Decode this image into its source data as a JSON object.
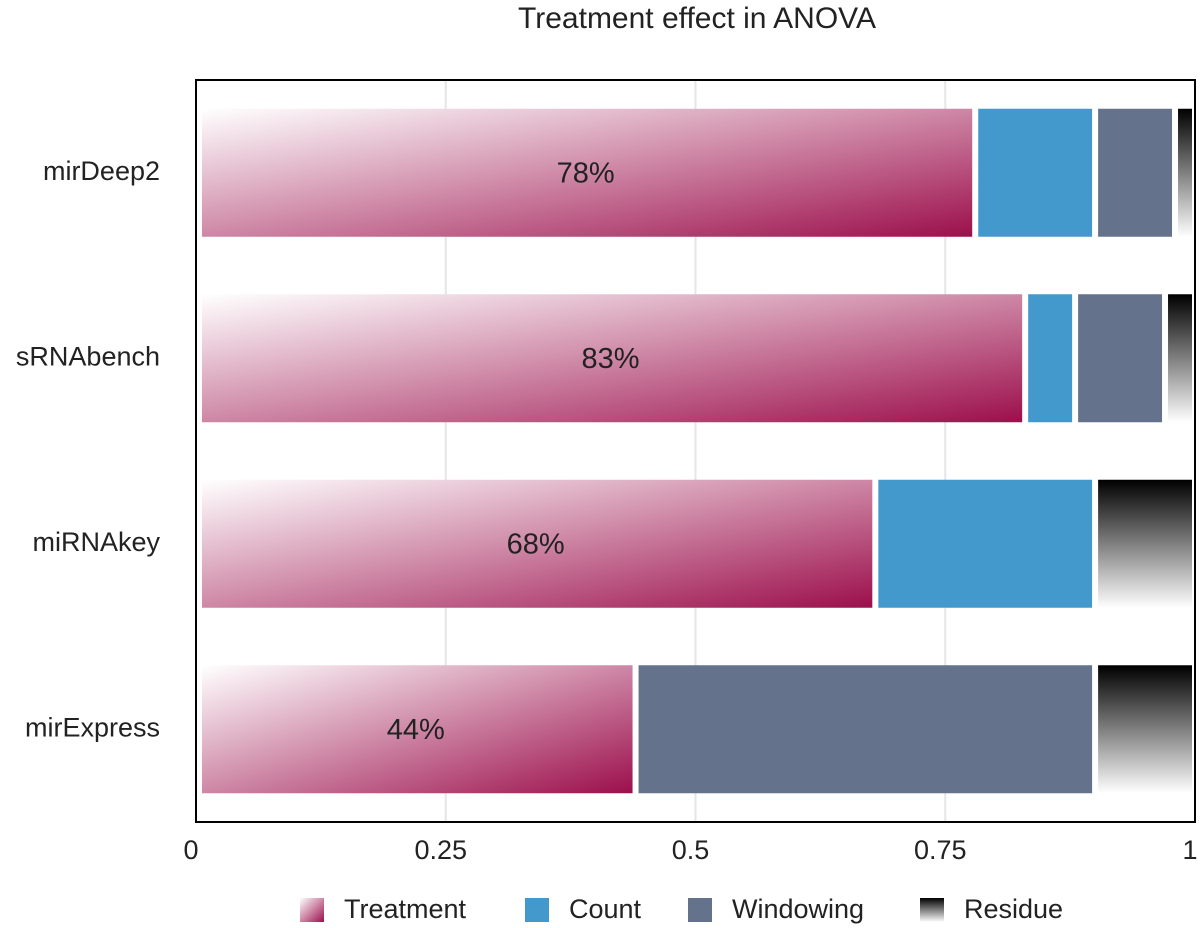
{
  "chart_data": {
    "type": "stacked_barh",
    "title": "Treatment effect in ANOVA",
    "categories": [
      "mirDeep2",
      "sRNAbench",
      "miRNAkey",
      "mirExpress"
    ],
    "series": [
      {
        "name": "Treatment",
        "color": "#9c0f4c",
        "values": [
          0.78,
          0.83,
          0.68,
          0.44
        ],
        "value_labels": [
          "78%",
          "83%",
          "68%",
          "44%"
        ]
      },
      {
        "name": "Count",
        "color": "#4499cc",
        "values": [
          0.12,
          0.05,
          0.22,
          0
        ]
      },
      {
        "name": "Windowing",
        "color": "#64728c",
        "values": [
          0.08,
          0.09,
          0,
          0.46
        ]
      },
      {
        "name": "Residue",
        "color": "#000000",
        "values": [
          0.02,
          0.03,
          0.1,
          0.1
        ]
      }
    ],
    "xlim": [
      0,
      1
    ],
    "xticks": [
      0,
      0.25,
      0.5,
      0.75,
      1
    ],
    "grid": true,
    "legend": "bottom"
  }
}
